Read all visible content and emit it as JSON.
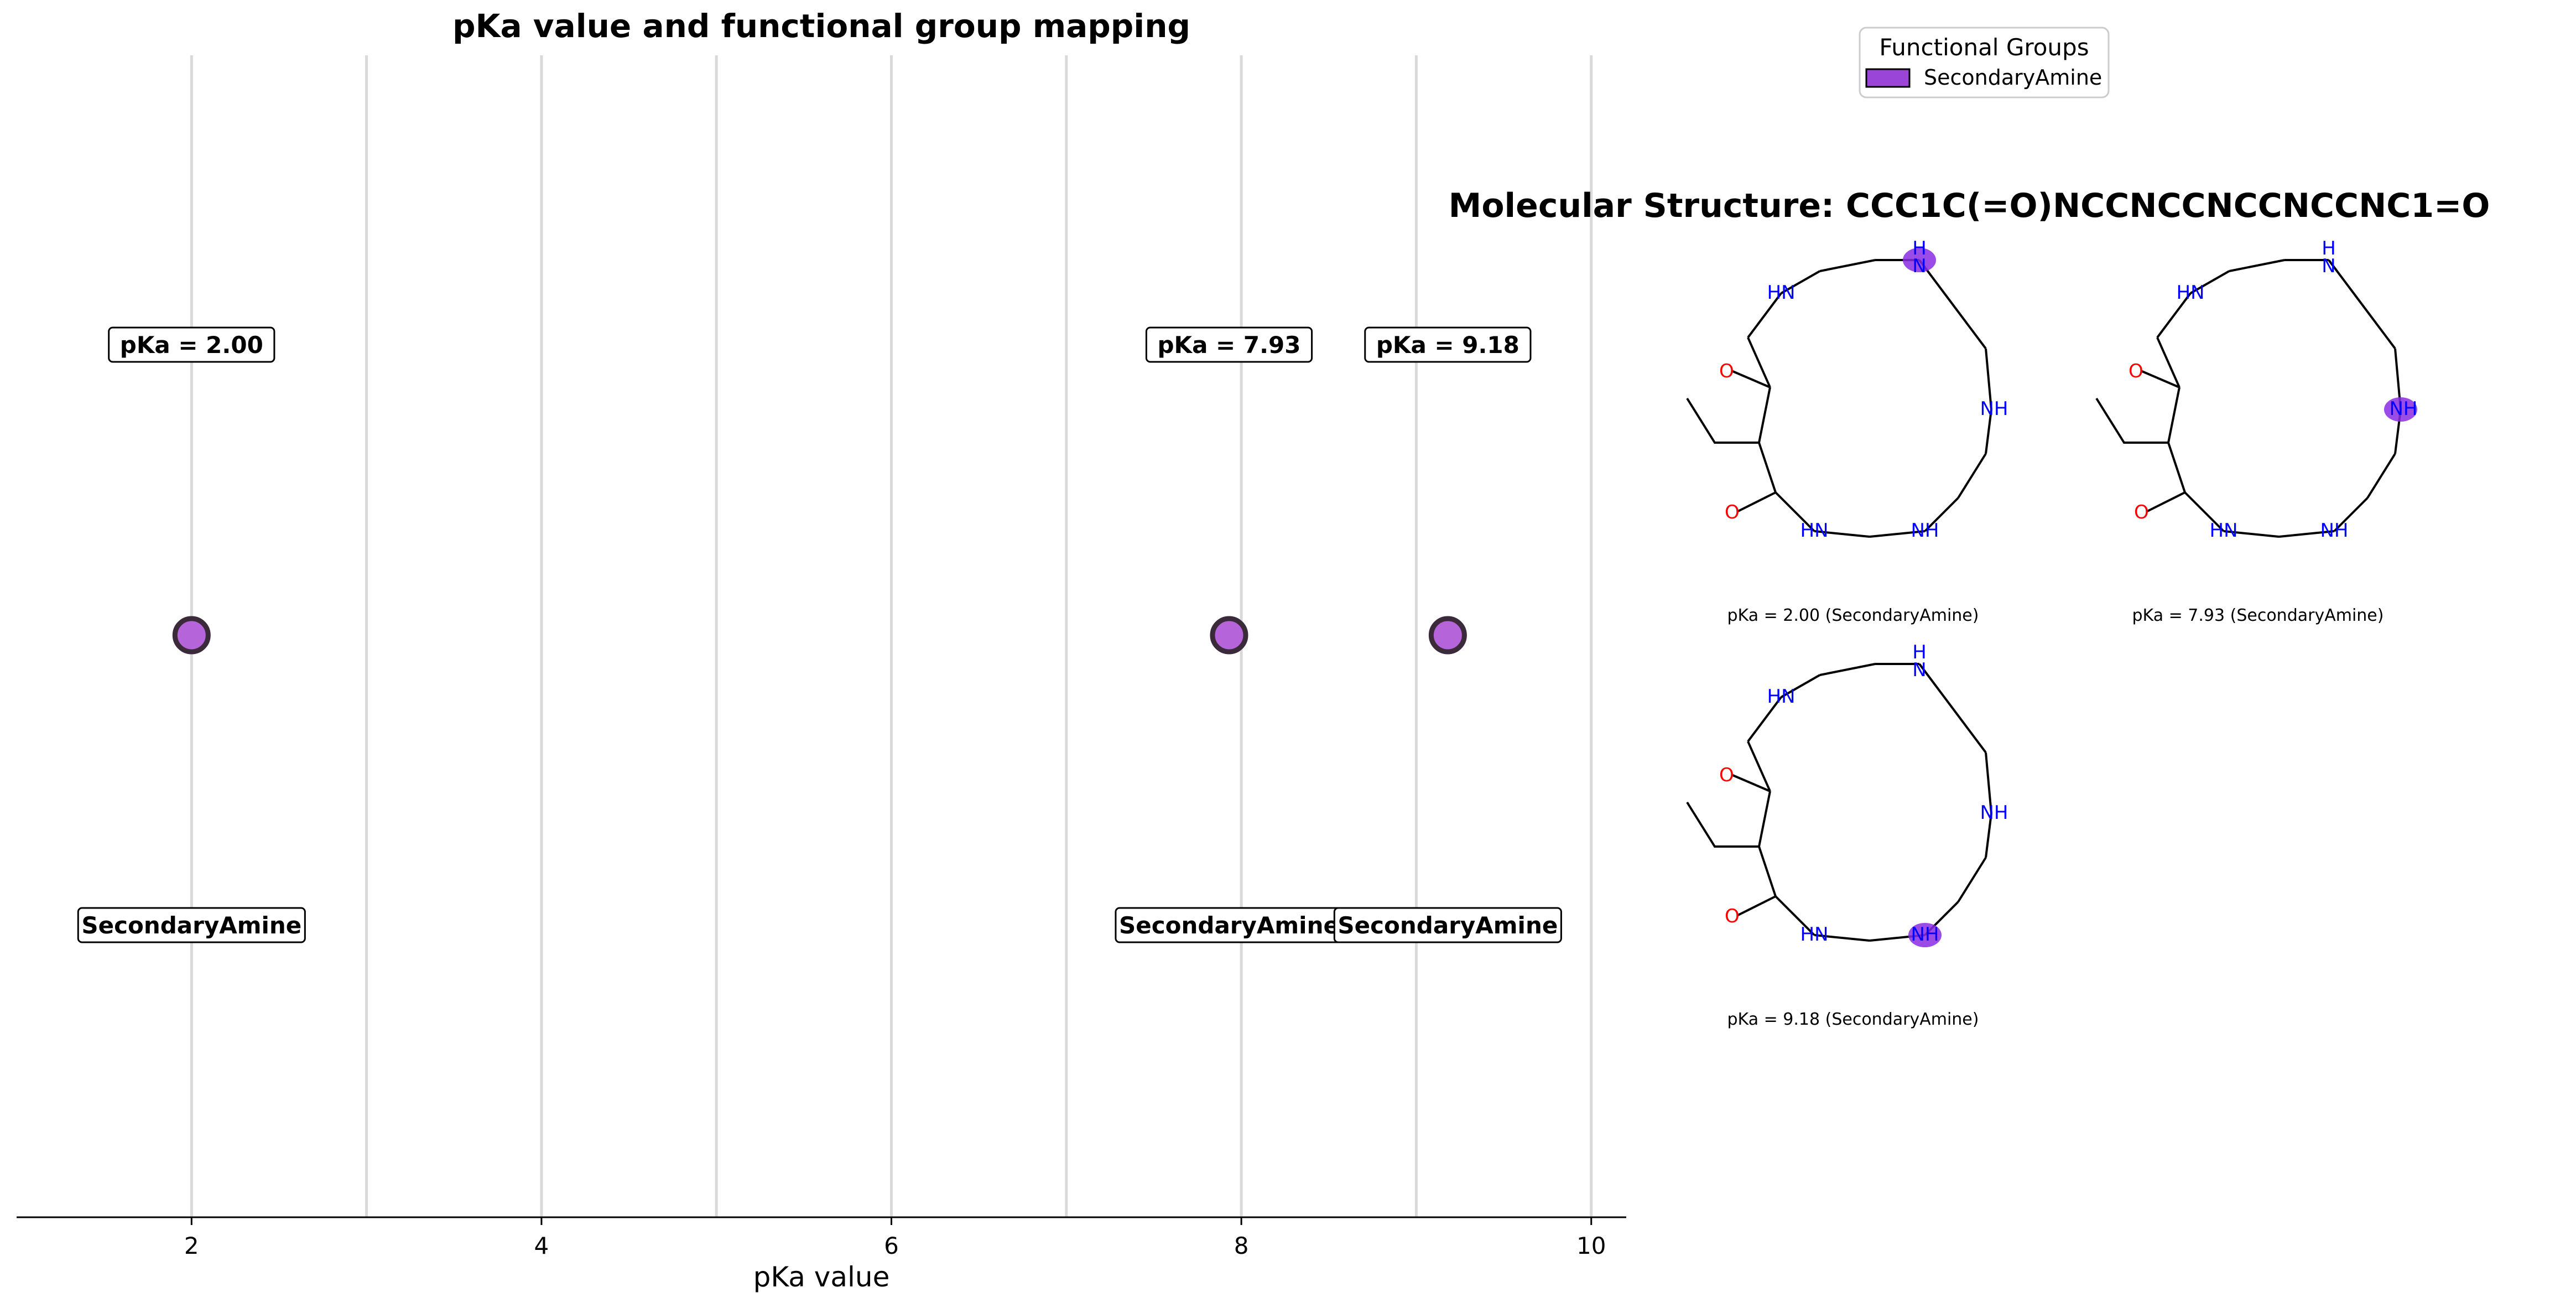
{
  "chart_data": {
    "type": "scatter",
    "title": "pKa value and functional group mapping",
    "xlabel": "pKa value",
    "ylabel": "",
    "xlim": [
      1.0,
      10.2
    ],
    "xticks": [
      2,
      4,
      6,
      8,
      10
    ],
    "grid_lines_x": [
      2,
      3,
      4,
      5,
      6,
      7,
      8,
      9,
      10
    ],
    "points": [
      {
        "x": 2.0,
        "pka_label": "pKa = 2.00",
        "group": "SecondaryAmine"
      },
      {
        "x": 7.93,
        "pka_label": "pKa = 7.93",
        "group": "SecondaryAmine"
      },
      {
        "x": 9.18,
        "pka_label": "pKa = 9.18",
        "group": "SecondaryAmine"
      }
    ],
    "marker_color": "#b565d9",
    "marker_edge_color": "#3a2a3a",
    "legend": {
      "title": "Functional Groups",
      "entries": [
        {
          "label": "SecondaryAmine",
          "color": "#9b45d8"
        }
      ],
      "placement": "top-right"
    }
  },
  "structure_panel": {
    "title": "Molecular Structure: CCC1C(=O)NCCNCCNCCNCCNC1=O",
    "captions": [
      "pKa = 2.00 (SecondaryAmine)",
      "pKa = 7.93 (SecondaryAmine)",
      "pKa = 9.18 (SecondaryAmine)"
    ],
    "highlight_color": "#8a2be2",
    "atom_labels": {
      "nh_left": "HN",
      "nh_right": "NH",
      "h": "H",
      "n": "N",
      "o": "O"
    }
  }
}
